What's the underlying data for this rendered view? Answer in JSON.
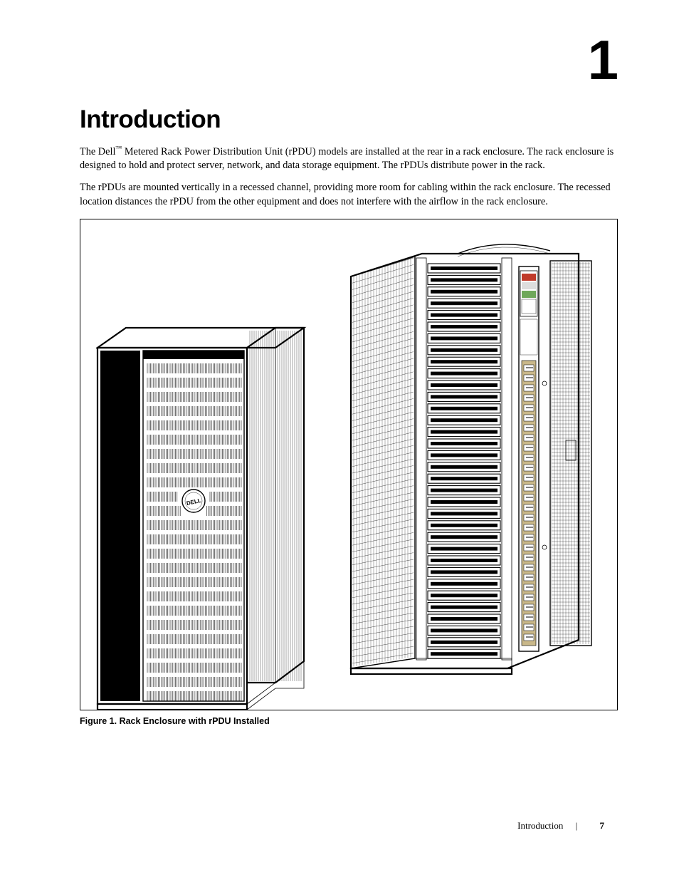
{
  "chapter_number": "1",
  "heading": "Introduction",
  "para1_pre": "The Dell",
  "para1_tm": "™",
  "para1_post": " Metered Rack Power Distribution Unit (rPDU) models are installed at the rear in a rack enclosure. The rack enclosure is designed to hold and protect server, network, and data storage equipment. The rPDUs distribute power in the rack.",
  "para2": "The rPDUs are mounted vertically in a recessed channel, providing more room for cabling within the rack enclosure. The recessed location distances the rPDU from the other equipment and does not interfere with the airflow in the rack enclosure.",
  "figure_caption": "Figure 1. Rack Enclosure with rPDU Installed",
  "footer_section": "Introduction",
  "footer_page": "7",
  "colors": {
    "text": "#000000",
    "background": "#ffffff",
    "led_red": "#c03a2a",
    "led_green": "#6fa85a",
    "pdu_strip": "#c9b88a"
  }
}
